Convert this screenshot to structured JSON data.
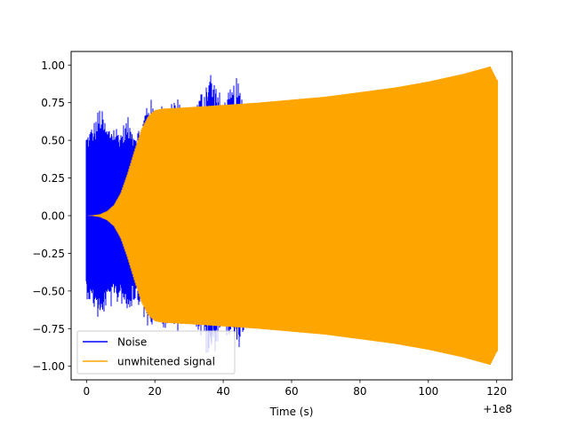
{
  "chart_data": {
    "type": "area",
    "title": "",
    "xlabel": "Time (s)",
    "ylabel": "",
    "x_offset_label": "+1e8",
    "xlim": [
      -4.5,
      124.5
    ],
    "ylim": [
      -1.09,
      1.09
    ],
    "x_ticks": [
      0,
      20,
      40,
      60,
      80,
      100,
      120
    ],
    "x_tick_labels": [
      "0",
      "20",
      "40",
      "60",
      "80",
      "100",
      "120"
    ],
    "y_ticks": [
      1.0,
      0.75,
      0.5,
      0.25,
      0.0,
      -0.25,
      -0.5,
      -0.75,
      -1.0
    ],
    "y_tick_labels": [
      "1.00",
      "0.75",
      "0.50",
      "0.25",
      "0.00",
      "−0.25",
      "−0.50",
      "−0.75",
      "−1.00"
    ],
    "grid": false,
    "legend_position": "lower-left",
    "series": [
      {
        "name": "Noise",
        "color": "#0000ff",
        "kind": "noise",
        "x_range": [
          0,
          120
        ],
        "amplitude_envelope": [
          [
            0,
            0.55
          ],
          [
            2,
            0.62
          ],
          [
            4,
            0.74
          ],
          [
            6,
            0.6
          ],
          [
            8,
            0.62
          ],
          [
            10,
            0.58
          ],
          [
            12,
            0.66
          ],
          [
            14,
            0.58
          ],
          [
            16,
            0.6
          ],
          [
            18,
            0.82
          ],
          [
            20,
            0.72
          ],
          [
            24,
            0.76
          ],
          [
            26,
            0.82
          ],
          [
            30,
            0.62
          ],
          [
            36,
            1.0
          ],
          [
            40,
            0.76
          ],
          [
            44,
            0.92
          ],
          [
            48,
            0.66
          ],
          [
            56,
            0.75
          ],
          [
            60,
            0.72
          ],
          [
            80,
            0.72
          ],
          [
            100,
            0.72
          ],
          [
            120,
            0.7
          ]
        ]
      },
      {
        "name": "unwhitened signal",
        "color": "#ffa500",
        "kind": "chirp",
        "x_range": [
          0,
          120
        ],
        "envelope": [
          [
            0,
            0.0
          ],
          [
            2,
            0.003
          ],
          [
            4,
            0.01
          ],
          [
            6,
            0.03
          ],
          [
            8,
            0.07
          ],
          [
            10,
            0.15
          ],
          [
            12,
            0.28
          ],
          [
            14,
            0.43
          ],
          [
            16,
            0.57
          ],
          [
            18,
            0.66
          ],
          [
            20,
            0.7
          ],
          [
            22,
            0.71
          ],
          [
            30,
            0.72
          ],
          [
            40,
            0.735
          ],
          [
            50,
            0.75
          ],
          [
            60,
            0.77
          ],
          [
            70,
            0.79
          ],
          [
            80,
            0.82
          ],
          [
            90,
            0.85
          ],
          [
            100,
            0.89
          ],
          [
            110,
            0.94
          ],
          [
            118,
            0.99
          ],
          [
            120,
            0.9
          ]
        ]
      }
    ]
  }
}
